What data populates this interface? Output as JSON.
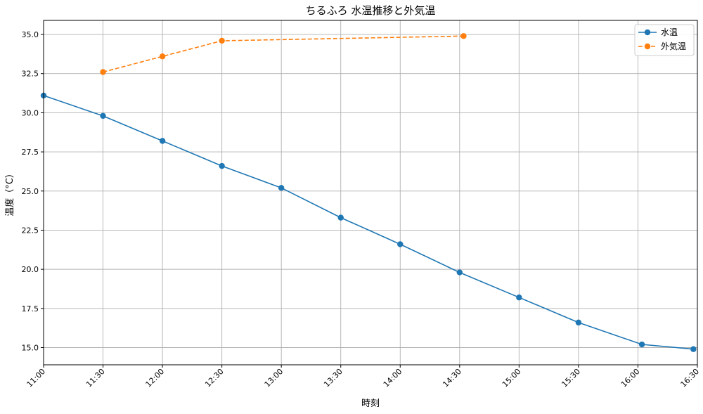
{
  "chart_data": {
    "type": "line",
    "title": "ちるふろ 水温推移と外気温",
    "xlabel": "時刻",
    "ylabel": "温度（°C）",
    "x_ticks": [
      "11:00",
      "11:30",
      "12:00",
      "12:30",
      "13:00",
      "13:30",
      "14:00",
      "14:30",
      "15:00",
      "15:30",
      "16:00",
      "16:30"
    ],
    "xlim": [
      "11:00",
      "16:30"
    ],
    "ylim": [
      13.9,
      35.9
    ],
    "y_ticks": [
      15.0,
      17.5,
      20.0,
      22.5,
      25.0,
      27.5,
      30.0,
      32.5,
      35.0
    ],
    "grid": true,
    "legend_position": "top-right",
    "series": [
      {
        "name": "水温",
        "color": "#1f77b4",
        "linestyle": "solid",
        "x": [
          "11:00",
          "11:30",
          "12:00",
          "12:30",
          "13:00",
          "13:30",
          "14:00",
          "14:30",
          "15:00",
          "15:30",
          "16:02",
          "16:28"
        ],
        "values": [
          31.1,
          29.8,
          28.2,
          26.6,
          25.2,
          23.3,
          21.6,
          19.8,
          18.2,
          16.6,
          15.2,
          14.9
        ]
      },
      {
        "name": "外気温",
        "color": "#ff7f0e",
        "linestyle": "dashed",
        "x": [
          "11:30",
          "12:00",
          "12:30",
          "14:32"
        ],
        "values": [
          32.6,
          33.6,
          34.6,
          34.9
        ]
      }
    ]
  }
}
